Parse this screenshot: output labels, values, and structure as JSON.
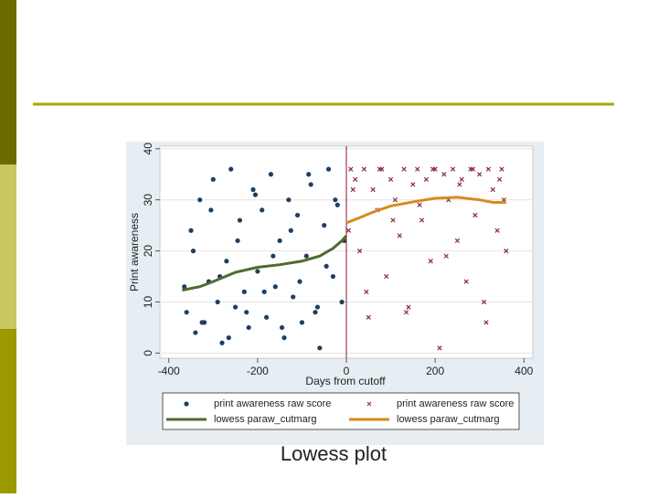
{
  "chart_data": {
    "type": "scatter",
    "caption": "Lowess plot",
    "x_label": "Days from cutoff",
    "y_label": "Print awareness",
    "xlim": [
      -420,
      420
    ],
    "xticks": [
      -400,
      -200,
      0,
      200,
      400
    ],
    "ylim": [
      -1,
      40.5
    ],
    "yticks": [
      0,
      10,
      20,
      30,
      40
    ],
    "grid": true,
    "cutoff": 0,
    "series": [
      {
        "name": "print awareness raw score",
        "kind": "dot",
        "color": "#1f3f5f",
        "x": [
          -360,
          -350,
          -340,
          -330,
          -320,
          -310,
          -300,
          -290,
          -280,
          -270,
          -260,
          -250,
          -240,
          -230,
          -220,
          -210,
          -200,
          -190,
          -180,
          -170,
          -160,
          -150,
          -140,
          -130,
          -120,
          -110,
          -100,
          -90,
          -80,
          -70,
          -60,
          -50,
          -40,
          -30,
          -20,
          -10,
          -365,
          -345,
          -325,
          -305,
          -285,
          -265,
          -245,
          -225,
          -205,
          -185,
          -165,
          -145,
          -125,
          -105,
          -85,
          -65,
          -45,
          -25,
          -5
        ],
        "values": [
          8,
          24,
          4,
          30,
          6,
          14,
          34,
          10,
          2,
          18,
          36,
          9,
          26,
          12,
          5,
          32,
          16,
          28,
          7,
          35,
          13,
          22,
          3,
          30,
          11,
          27,
          6,
          19,
          33,
          8,
          1,
          25,
          36,
          15,
          29,
          10,
          13,
          20,
          6,
          28,
          15,
          3,
          22,
          8,
          31,
          12,
          19,
          5,
          24,
          14,
          35,
          9,
          17,
          30,
          22
        ]
      },
      {
        "name": "print awareness raw score",
        "kind": "cross",
        "color": "#8b2a3a",
        "x": [
          10,
          20,
          30,
          40,
          50,
          60,
          70,
          80,
          90,
          100,
          110,
          120,
          130,
          140,
          150,
          160,
          170,
          180,
          190,
          200,
          210,
          220,
          230,
          240,
          250,
          260,
          270,
          280,
          290,
          300,
          310,
          320,
          330,
          340,
          350,
          360,
          15,
          45,
          75,
          105,
          135,
          165,
          195,
          225,
          255,
          285,
          315,
          345,
          355,
          5
        ],
        "values": [
          36,
          34,
          20,
          36,
          7,
          32,
          28,
          36,
          15,
          34,
          30,
          23,
          36,
          9,
          33,
          36,
          26,
          34,
          18,
          36,
          1,
          35,
          30,
          36,
          22,
          34,
          14,
          36,
          27,
          35,
          10,
          36,
          32,
          24,
          36,
          20,
          32,
          12,
          36,
          26,
          8,
          29,
          36,
          19,
          33,
          36,
          6,
          34,
          30,
          24
        ]
      },
      {
        "name": "lowess paraw_cutmarg",
        "kind": "line",
        "color": "#4f6b2f",
        "x": [
          -370,
          -330,
          -300,
          -250,
          -200,
          -150,
          -100,
          -60,
          -30,
          -10,
          0
        ],
        "values": [
          12.3,
          13,
          14,
          15.8,
          16.8,
          17.3,
          18,
          19,
          20.5,
          22,
          23
        ]
      },
      {
        "name": "lowess paraw_cutmarg",
        "kind": "line",
        "color": "#d88a1c",
        "x": [
          0,
          30,
          60,
          100,
          150,
          200,
          250,
          300,
          330,
          360
        ],
        "values": [
          25.5,
          26.5,
          27.6,
          28.8,
          29.6,
          30.3,
          30.5,
          30,
          29.5,
          29.5
        ]
      }
    ]
  }
}
